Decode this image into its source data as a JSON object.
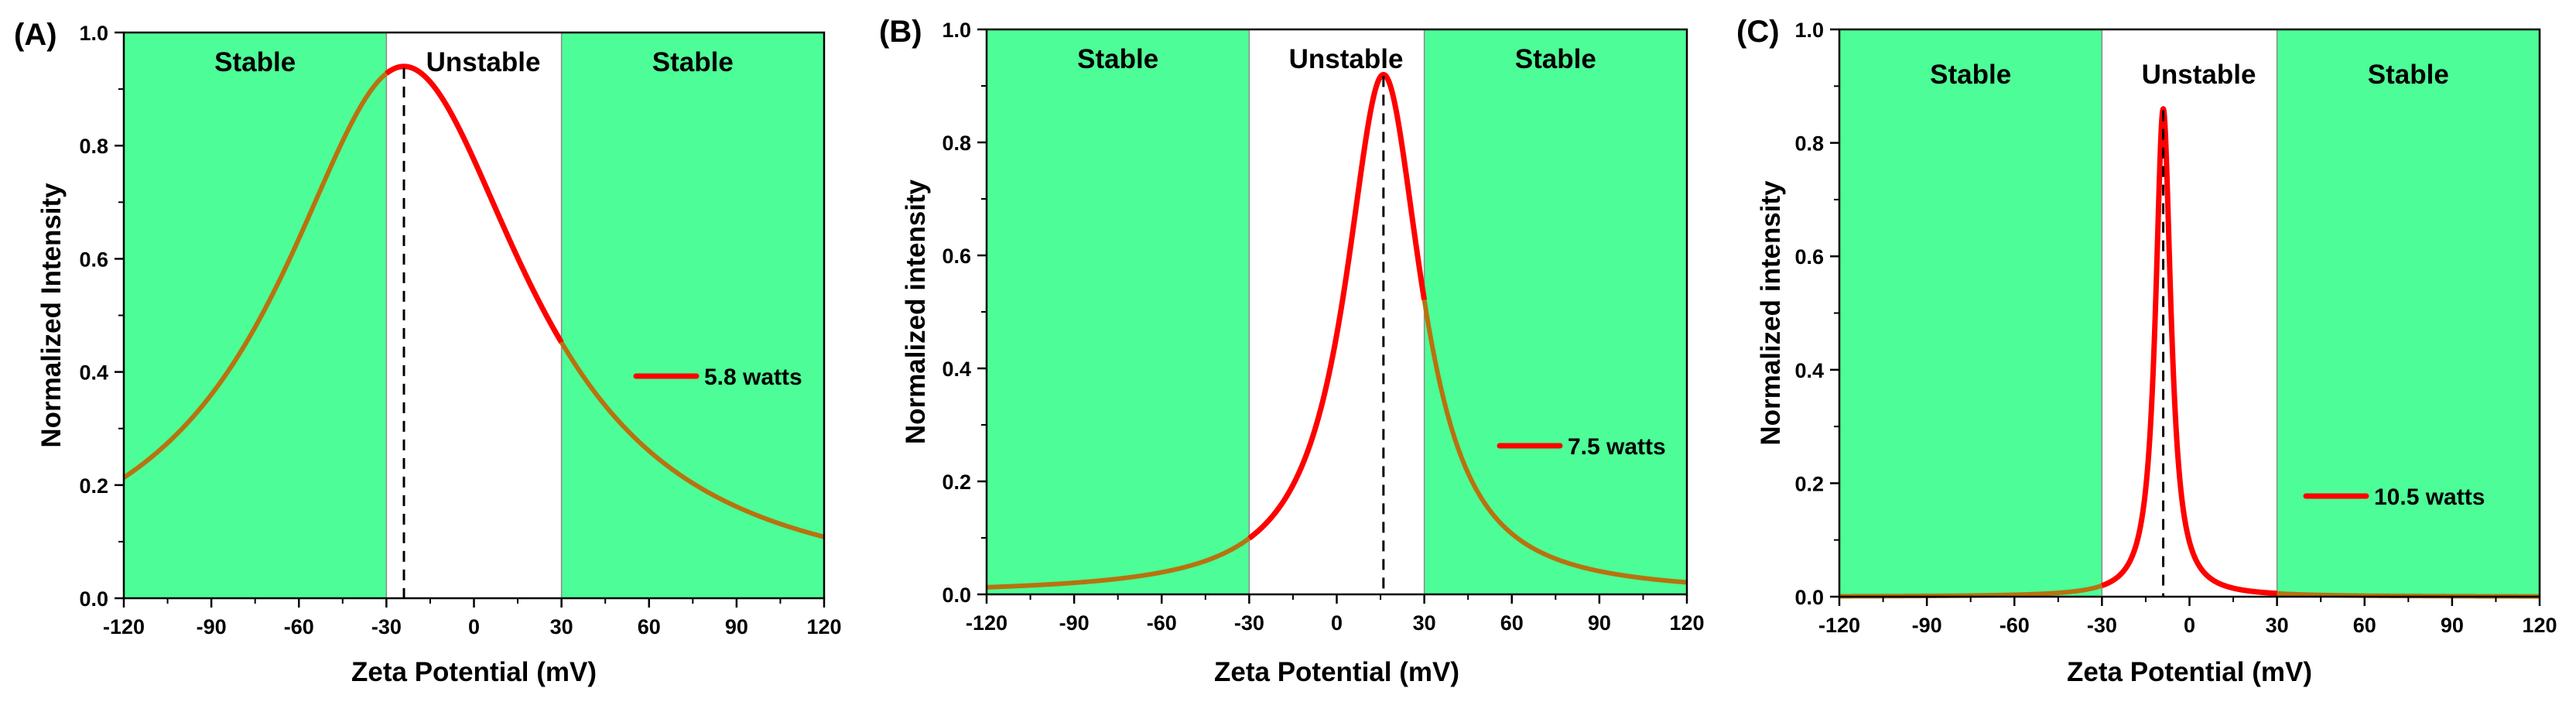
{
  "chart_data": [
    {
      "type": "line",
      "panel_label": "(A)",
      "xlabel": "Zeta Potential (mV)",
      "ylabel": "Normalized Intensity",
      "xlim": [
        -120,
        120
      ],
      "ylim": [
        0,
        1.0
      ],
      "xticks": [
        -120,
        -90,
        -60,
        -30,
        0,
        30,
        60,
        90,
        120
      ],
      "xtick_labels": [
        "-120",
        "-90",
        "-60",
        "-30",
        "0",
        "30",
        "60",
        "90",
        "120"
      ],
      "yticks": [
        0,
        0.2,
        0.4,
        0.6,
        0.8,
        1.0
      ],
      "ytick_labels": [
        "0.0",
        "0.2",
        "0.4",
        "0.6",
        "0.8",
        "1.0"
      ],
      "regions": [
        {
          "label": "Stable",
          "x_range": [
            -120,
            -30
          ],
          "color": "#4dfd97"
        },
        {
          "label": "Unstable",
          "x_range": [
            -30,
            30
          ],
          "color": "#ffffff"
        },
        {
          "label": "Stable",
          "x_range": [
            30,
            120
          ],
          "color": "#4dfd97"
        }
      ],
      "peak_marker_x": -24,
      "series": [
        {
          "name": "5.8 watts",
          "shape": "lorentzian",
          "peak_x": -24,
          "peak_y": 0.94,
          "half_width": 52,
          "color": "#ff0000"
        }
      ],
      "legend": {
        "label": "5.8 watts",
        "position": "right"
      }
    },
    {
      "type": "line",
      "panel_label": "(B)",
      "xlabel": "Zeta Potential (mV)",
      "ylabel": "Normalized intensity",
      "xlim": [
        -120,
        120
      ],
      "ylim": [
        0,
        1.0
      ],
      "xticks": [
        -120,
        -90,
        -60,
        -30,
        0,
        30,
        60,
        90,
        120
      ],
      "xtick_labels": [
        "-120",
        "-90",
        "-60",
        "-30",
        "0",
        "30",
        "60",
        "90",
        "120"
      ],
      "yticks": [
        0,
        0.2,
        0.4,
        0.6,
        0.8,
        1.0
      ],
      "ytick_labels": [
        "0.0",
        "0.2",
        "0.4",
        "0.6",
        "0.8",
        "1.0"
      ],
      "regions": [
        {
          "label": "Stable",
          "x_range": [
            -120,
            -30
          ],
          "color": "#4dfd97"
        },
        {
          "label": "Unstable",
          "x_range": [
            -30,
            30
          ],
          "color": "#ffffff"
        },
        {
          "label": "Stable",
          "x_range": [
            30,
            120
          ],
          "color": "#4dfd97"
        }
      ],
      "peak_marker_x": 16,
      "series": [
        {
          "name": "7.5 watts",
          "shape": "lorentzian",
          "peak_x": 16,
          "peak_y": 0.92,
          "half_width": 16,
          "color": "#ff0000"
        }
      ],
      "legend": {
        "label": "7.5 watts",
        "position": "right"
      }
    },
    {
      "type": "line",
      "panel_label": "(C)",
      "xlabel": "Zeta Potential (mV)",
      "ylabel": "Normalized intensity",
      "xlim": [
        -120,
        120
      ],
      "ylim": [
        0,
        1.0
      ],
      "xticks": [
        -120,
        -90,
        -60,
        -30,
        0,
        30,
        60,
        90,
        120
      ],
      "xtick_labels": [
        "-120",
        "-90",
        "-60",
        "-30",
        "0",
        "30",
        "60",
        "90",
        "120"
      ],
      "yticks": [
        0,
        0.2,
        0.4,
        0.6,
        0.8,
        1.0
      ],
      "ytick_labels": [
        "0.0",
        "0.2",
        "0.4",
        "0.6",
        "0.8",
        "1.0"
      ],
      "regions": [
        {
          "label": "Stable",
          "x_range": [
            -120,
            -30
          ],
          "color": "#4dfd97"
        },
        {
          "label": "Unstable",
          "x_range": [
            -30,
            30
          ],
          "color": "#ffffff"
        },
        {
          "label": "Stable",
          "x_range": [
            30,
            120
          ],
          "color": "#4dfd97"
        }
      ],
      "peak_marker_x": -9,
      "series": [
        {
          "name": "10.5 watts",
          "shape": "lorentzian",
          "peak_x": -9,
          "peak_y": 0.86,
          "half_width": 3.2,
          "color": "#ff0000"
        }
      ],
      "legend": {
        "label": "10.5 watts",
        "position": "lower-right"
      }
    }
  ],
  "colors": {
    "curve": "#ff0000",
    "curve_over_green": "#b8720f",
    "stable_fill": "#4dfd97",
    "axis": "#000000"
  }
}
